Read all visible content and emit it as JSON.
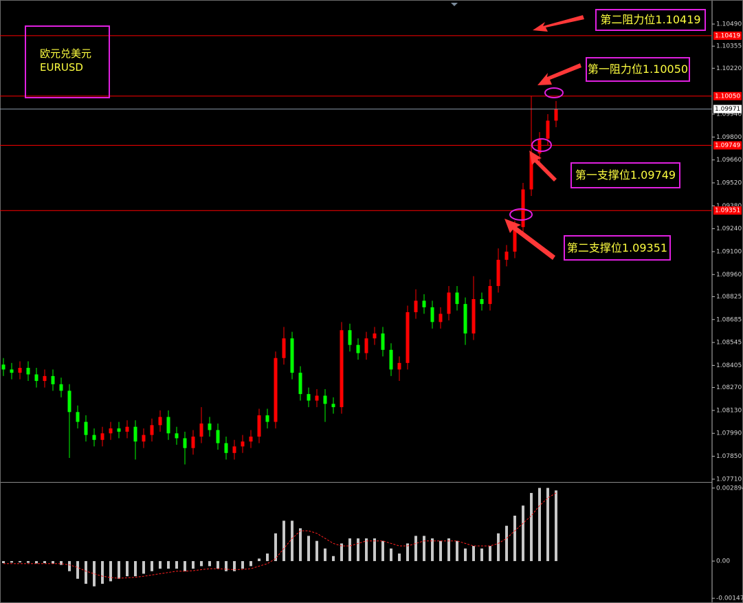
{
  "chart_data": [
    {
      "type": "candlestick",
      "title": "欧元兑美元",
      "subtitle": "EURUSD",
      "up_color": "#ff0000",
      "down_color": "#00ff00",
      "open": [
        1.0841,
        1.0838,
        1.0836,
        1.0839,
        1.0835,
        1.0831,
        1.0834,
        1.0829,
        1.0825,
        1.0812,
        1.0806,
        1.0798,
        1.0795,
        1.0799,
        1.0802,
        1.08,
        1.0803,
        1.0794,
        1.0798,
        1.0804,
        1.0809,
        1.0799,
        1.0796,
        1.079,
        1.0797,
        1.0805,
        1.0801,
        1.0793,
        1.0787,
        1.0791,
        1.0794,
        1.0797,
        1.081,
        1.0806,
        1.0845,
        1.0857,
        1.0836,
        1.0823,
        1.0819,
        1.0822,
        1.0817,
        1.0815,
        1.0862,
        1.0853,
        1.0848,
        1.0857,
        1.086,
        1.085,
        1.0838,
        1.0842,
        1.0873,
        1.088,
        1.0876,
        1.0867,
        1.0872,
        1.0885,
        1.0878,
        1.086,
        1.0881,
        1.0878,
        1.0889,
        1.0905,
        1.091,
        1.0925,
        1.0948,
        1.097,
        1.0979,
        1.099
      ],
      "high": [
        1.0845,
        1.0842,
        1.0843,
        1.0843,
        1.0839,
        1.0838,
        1.0838,
        1.0833,
        1.0829,
        1.0816,
        1.081,
        1.0802,
        1.0803,
        1.0806,
        1.0806,
        1.0807,
        1.0807,
        1.0802,
        1.0808,
        1.0813,
        1.0813,
        1.0803,
        1.08,
        1.0801,
        1.0815,
        1.0809,
        1.0805,
        1.0797,
        1.0795,
        1.0798,
        1.0801,
        1.0814,
        1.0814,
        1.0849,
        1.0864,
        1.0861,
        1.084,
        1.0827,
        1.0826,
        1.0826,
        1.0821,
        1.0867,
        1.0866,
        1.0857,
        1.0861,
        1.0864,
        1.0864,
        1.0854,
        1.0846,
        1.0877,
        1.0887,
        1.0884,
        1.088,
        1.0876,
        1.0889,
        1.0889,
        1.0882,
        1.0895,
        1.0885,
        1.0893,
        1.0912,
        1.0914,
        1.0929,
        1.0952,
        1.1005,
        1.0983,
        1.0994,
        1.1002
      ],
      "low": [
        1.0834,
        1.0832,
        1.0832,
        1.0831,
        1.0827,
        1.0827,
        1.0825,
        1.0821,
        1.0784,
        1.0802,
        1.0794,
        1.0791,
        1.0791,
        1.0795,
        1.0796,
        1.0796,
        1.0783,
        1.079,
        1.0794,
        1.08,
        1.0795,
        1.0792,
        1.078,
        1.0786,
        1.0793,
        1.0797,
        1.0789,
        1.0783,
        1.0783,
        1.0787,
        1.079,
        1.0793,
        1.0802,
        1.0802,
        1.0841,
        1.0832,
        1.0819,
        1.0815,
        1.0815,
        1.0806,
        1.0811,
        1.0811,
        1.0849,
        1.0844,
        1.0844,
        1.0853,
        1.0846,
        1.0834,
        1.0831,
        1.0838,
        1.0869,
        1.0872,
        1.0863,
        1.0863,
        1.0868,
        1.0874,
        1.0853,
        1.0856,
        1.0874,
        1.0874,
        1.0885,
        1.0901,
        1.0906,
        1.0921,
        1.0944,
        1.0962,
        1.0975,
        1.0986
      ],
      "close": [
        1.0838,
        1.0836,
        1.0839,
        1.0835,
        1.0831,
        1.0834,
        1.0829,
        1.0825,
        1.0812,
        1.0806,
        1.0798,
        1.0795,
        1.0799,
        1.0802,
        1.08,
        1.0803,
        1.0794,
        1.0798,
        1.0804,
        1.0809,
        1.0799,
        1.0796,
        1.079,
        1.0797,
        1.0805,
        1.0801,
        1.0793,
        1.0787,
        1.0791,
        1.0794,
        1.0797,
        1.081,
        1.0806,
        1.0845,
        1.0857,
        1.0836,
        1.0823,
        1.0819,
        1.0822,
        1.0817,
        1.0815,
        1.0862,
        1.0853,
        1.0848,
        1.0857,
        1.086,
        1.085,
        1.0838,
        1.0842,
        1.0873,
        1.088,
        1.0876,
        1.0867,
        1.0872,
        1.0885,
        1.0878,
        1.086,
        1.0881,
        1.0878,
        1.0889,
        1.0905,
        1.091,
        1.0925,
        1.0948,
        1.097,
        1.0979,
        1.099,
        1.09971
      ],
      "ylim": [
        1.07697,
        1.10637
      ],
      "yticks": [
        {
          "value": 1.1049,
          "label": "1.10490"
        },
        1.10355,
        {
          "value": 1.1022,
          "label": "1.10220"
        },
        {
          "value": 1.0994,
          "label": "1.09940"
        },
        {
          "value": 1.098,
          "label": "1.09800"
        },
        {
          "value": 1.0966,
          "label": "1.09660"
        },
        {
          "value": 1.0952,
          "label": "1.09520"
        },
        {
          "value": 1.0938,
          "label": "1.09380"
        },
        {
          "value": 1.0924,
          "label": "1.09240"
        },
        {
          "value": 1.091,
          "label": "1.09100"
        },
        {
          "value": 1.0896,
          "label": "1.08960"
        },
        1.08825,
        1.08685,
        1.08545,
        1.08405,
        {
          "value": 1.0827,
          "label": "1.08270"
        },
        {
          "value": 1.0813,
          "label": "1.08130"
        },
        {
          "value": 1.0799,
          "label": "1.07990"
        },
        {
          "value": 1.0785,
          "label": "1.07850"
        },
        {
          "value": 1.0771,
          "label": "1.07710"
        }
      ],
      "price_lines": [
        {
          "value": 1.10419,
          "color": "#ff0000"
        },
        {
          "value": 1.1005,
          "label": "1.10050",
          "color": "#ff0000"
        },
        {
          "value": 1.09971,
          "color": "#8c9aaa"
        },
        {
          "value": 1.09749,
          "color": "#ff0000"
        },
        {
          "value": 1.09351,
          "color": "#ff0000"
        }
      ],
      "annotations": [
        "第二阻力位1.10419",
        "第一阻力位1.10050",
        "第一支撑位1.09749",
        "第二支撑位1.09351"
      ]
    },
    {
      "type": "macd",
      "series": [
        {
          "color": "#c8c8c8",
          "values": [
            -8e-05,
            -6e-05,
            -5e-05,
            -7e-05,
            -9e-05,
            -8e-05,
            -0.0001,
            -0.00015,
            -0.0004,
            -0.0007,
            -0.0009,
            -0.001,
            -0.0009,
            -0.0008,
            -0.0007,
            -0.0006,
            -0.0006,
            -0.0005,
            -0.0004,
            -0.0003,
            -0.0003,
            -0.0003,
            -0.0004,
            -0.0003,
            -0.0002,
            -0.0002,
            -0.0003,
            -0.0004,
            -0.0004,
            -0.0003,
            -0.0002,
            0.0001,
            0.0003,
            0.0011,
            0.0016,
            0.0016,
            0.0013,
            0.001,
            0.0008,
            0.0005,
            0.0002,
            0.0007,
            0.0009,
            0.0009,
            0.0009,
            0.0009,
            0.0008,
            0.0005,
            0.0003,
            0.0007,
            0.001,
            0.001,
            0.0009,
            0.0008,
            0.0009,
            0.0008,
            0.0005,
            0.0006,
            0.0005,
            0.0006,
            0.0011,
            0.0014,
            0.0018,
            0.0022,
            0.0027,
            0.0029,
            0.0029,
            0.0028
          ]
        },
        {
          "color": "#ff2020",
          "style": "dashed",
          "values": [
            -0.0001,
            -0.0001,
            -0.0001,
            -0.0001,
            -0.0001,
            -0.0001,
            -0.0001,
            -0.0001,
            -0.00015,
            -0.00025,
            -0.0004,
            -0.0005,
            -0.0006,
            -0.00065,
            -0.00068,
            -0.00066,
            -0.00064,
            -0.0006,
            -0.00055,
            -0.0005,
            -0.00045,
            -0.0004,
            -0.0004,
            -0.00038,
            -0.00034,
            -0.0003,
            -0.0003,
            -0.00032,
            -0.00034,
            -0.00033,
            -0.0003,
            -0.0002,
            -0.0001,
            0.0001,
            0.0005,
            0.0009,
            0.0012,
            0.0012,
            0.0011,
            0.0009,
            0.0007,
            0.0006,
            0.0006,
            0.0007,
            0.0008,
            0.0008,
            0.0008,
            0.0007,
            0.0006,
            0.0006,
            0.0007,
            0.0008,
            0.0008,
            0.0008,
            0.0008,
            0.0008,
            0.0007,
            0.0006,
            0.0006,
            0.0006,
            0.0007,
            0.0009,
            0.0012,
            0.0015,
            0.0018,
            0.0022,
            0.0025,
            0.0027
          ]
        }
      ],
      "ylim": [
        -0.00166,
        0.00308
      ],
      "yticks": [
        0.002894,
        {
          "value": 0,
          "label": "0.00"
        },
        -0.001473
      ]
    }
  ]
}
